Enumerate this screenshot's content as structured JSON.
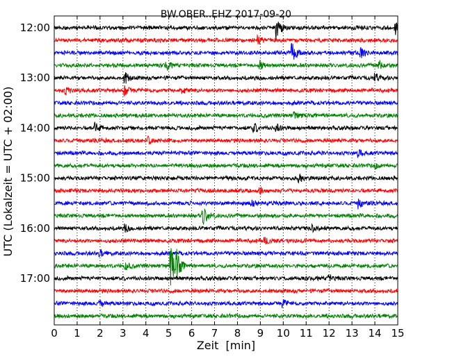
{
  "chart_data": {
    "type": "line",
    "title": "BW.OBER..EHZ 2017-09-20",
    "xlabel": "Zeit  [min]",
    "ylabel": "UTC (Lokalzeit = UTC + 02:00)",
    "xlim": [
      0,
      15
    ],
    "x_ticks": [
      "0",
      "1",
      "2",
      "3",
      "4",
      "5",
      "6",
      "7",
      "8",
      "9",
      "10",
      "11",
      "12",
      "13",
      "14",
      "15"
    ],
    "y_tick_labels": [
      "12:00",
      "13:00",
      "14:00",
      "15:00",
      "16:00",
      "17:00"
    ],
    "grid": "vertical dotted",
    "trace_interval_min": 15,
    "colors": [
      "#000000",
      "#ff0000",
      "#0000ff",
      "#008000"
    ],
    "traces": [
      {
        "start": "12:00",
        "color": "#000000",
        "events": [
          {
            "x": 9.7,
            "amp": 1.0
          },
          {
            "x": 14.9,
            "amp": 0.6
          }
        ]
      },
      {
        "start": "12:15",
        "color": "#ff0000",
        "events": [
          {
            "x": 8.9,
            "amp": 0.4
          }
        ]
      },
      {
        "start": "12:30",
        "color": "#0000ff",
        "events": [
          {
            "x": 10.4,
            "amp": 0.9
          },
          {
            "x": 10.5,
            "amp": 0.6
          },
          {
            "x": 13.4,
            "amp": 0.5
          }
        ]
      },
      {
        "start": "12:45",
        "color": "#008000",
        "events": [
          {
            "x": 4.9,
            "amp": 0.5
          },
          {
            "x": 9.0,
            "amp": 0.4
          },
          {
            "x": 14.2,
            "amp": 0.5
          }
        ]
      },
      {
        "start": "13:00",
        "color": "#000000",
        "events": [
          {
            "x": 3.1,
            "amp": 0.5
          },
          {
            "x": 14.0,
            "amp": 0.4
          }
        ]
      },
      {
        "start": "13:15",
        "color": "#ff0000",
        "events": [
          {
            "x": 0.5,
            "amp": 0.4
          },
          {
            "x": 3.1,
            "amp": 0.5
          },
          {
            "x": 5.6,
            "amp": 0.4
          }
        ]
      },
      {
        "start": "13:30",
        "color": "#0000ff",
        "events": []
      },
      {
        "start": "13:45",
        "color": "#008000",
        "events": [
          {
            "x": 10.5,
            "amp": 0.3
          }
        ]
      },
      {
        "start": "14:00",
        "color": "#000000",
        "events": [
          {
            "x": 1.8,
            "amp": 0.5
          },
          {
            "x": 8.7,
            "amp": 0.5
          },
          {
            "x": 9.7,
            "amp": 0.4
          }
        ]
      },
      {
        "start": "14:15",
        "color": "#ff0000",
        "events": [
          {
            "x": 4.1,
            "amp": 0.3
          }
        ]
      },
      {
        "start": "14:30",
        "color": "#0000ff",
        "events": [
          {
            "x": 13.3,
            "amp": 0.3
          }
        ]
      },
      {
        "start": "14:45",
        "color": "#008000",
        "events": [
          {
            "x": 14.0,
            "amp": 0.3
          }
        ]
      },
      {
        "start": "15:00",
        "color": "#000000",
        "events": [
          {
            "x": 10.7,
            "amp": 0.4
          }
        ]
      },
      {
        "start": "15:15",
        "color": "#ff0000",
        "events": [
          {
            "x": 9.0,
            "amp": 0.3
          }
        ]
      },
      {
        "start": "15:30",
        "color": "#0000ff",
        "events": [
          {
            "x": 8.6,
            "amp": 0.4
          },
          {
            "x": 13.3,
            "amp": 0.5
          }
        ]
      },
      {
        "start": "15:45",
        "color": "#008000",
        "events": [
          {
            "x": 6.5,
            "amp": 1.2
          }
        ]
      },
      {
        "start": "16:00",
        "color": "#000000",
        "events": [
          {
            "x": 3.1,
            "amp": 0.3
          },
          {
            "x": 11.3,
            "amp": 0.3
          }
        ]
      },
      {
        "start": "16:15",
        "color": "#ff0000",
        "events": [
          {
            "x": 9.2,
            "amp": 0.3
          }
        ]
      },
      {
        "start": "16:30",
        "color": "#0000ff",
        "events": [
          {
            "x": 2.0,
            "amp": 0.3
          }
        ]
      },
      {
        "start": "16:45",
        "color": "#008000",
        "events": [
          {
            "x": 5.1,
            "amp": 2.0
          },
          {
            "x": 5.35,
            "amp": 1.6
          },
          {
            "x": 3.1,
            "amp": 0.4
          }
        ]
      },
      {
        "start": "17:00",
        "color": "#000000",
        "events": [
          {
            "x": 12.0,
            "amp": 0.3
          }
        ]
      },
      {
        "start": "17:15",
        "color": "#ff0000",
        "events": []
      },
      {
        "start": "17:30",
        "color": "#0000ff",
        "events": [
          {
            "x": 2.0,
            "amp": 0.3
          },
          {
            "x": 10.0,
            "amp": 0.3
          }
        ]
      },
      {
        "start": "17:45",
        "color": "#008000",
        "events": []
      }
    ]
  }
}
